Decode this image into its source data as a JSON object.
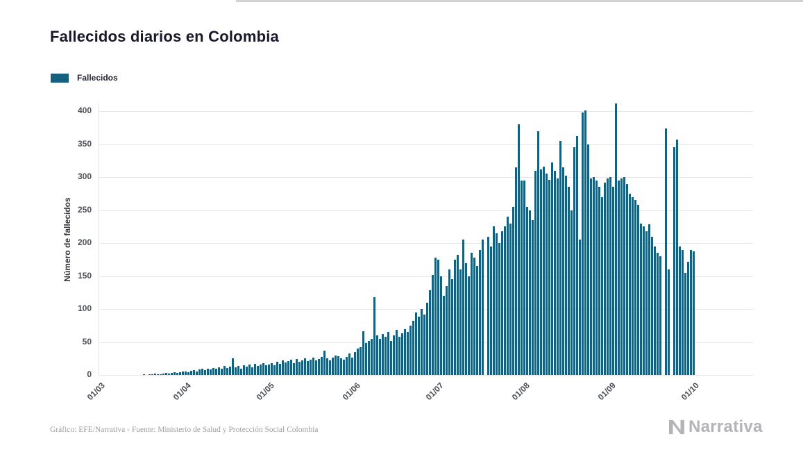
{
  "page": {
    "title": "Fallecidos diarios en Colombia",
    "footer": "Gráfico: EFE/Narrativa - Fuente: Ministerio de Salud y Protección Social Colombia",
    "logo_text": "Narrativa"
  },
  "legend": {
    "label": "Fallecidos",
    "color": "#15607e"
  },
  "chart_data": {
    "type": "bar",
    "title": "Fallecidos diarios en Colombia",
    "series_name": "Fallecidos",
    "xlabel": "",
    "ylabel": "Número de fallecidos",
    "bar_color": "#15607e",
    "grid": true,
    "legend_position": "top-left",
    "ylim": [
      0,
      420
    ],
    "yticks": [
      0,
      50,
      100,
      150,
      200,
      250,
      300,
      350,
      400
    ],
    "date_format": "DD/MM",
    "x_start": "01/03",
    "x_end": "01/10",
    "x_frequency": "daily",
    "xticks": [
      {
        "label": "01/03",
        "day": 0
      },
      {
        "label": "01/04",
        "day": 31
      },
      {
        "label": "01/05",
        "day": 61
      },
      {
        "label": "01/06",
        "day": 92
      },
      {
        "label": "01/07",
        "day": 122
      },
      {
        "label": "01/08",
        "day": 153
      },
      {
        "label": "01/09",
        "day": 184
      },
      {
        "label": "01/10",
        "day": 214
      }
    ],
    "values": [
      0,
      0,
      0,
      0,
      0,
      0,
      0,
      0,
      0,
      0,
      0,
      0,
      0,
      0,
      0,
      0,
      1,
      0,
      1,
      1,
      2,
      1,
      1,
      2,
      3,
      2,
      3,
      4,
      3,
      4,
      5,
      5,
      4,
      6,
      7,
      5,
      8,
      9,
      7,
      10,
      8,
      11,
      9,
      12,
      10,
      14,
      11,
      13,
      25,
      12,
      14,
      10,
      15,
      13,
      16,
      12,
      17,
      14,
      16,
      18,
      15,
      16,
      18,
      15,
      20,
      17,
      22,
      19,
      21,
      23,
      18,
      24,
      20,
      22,
      25,
      21,
      23,
      26,
      22,
      24,
      27,
      37,
      25,
      22,
      26,
      30,
      28,
      25,
      23,
      27,
      33,
      26,
      35,
      40,
      42,
      66,
      48,
      52,
      55,
      118,
      60,
      55,
      62,
      58,
      65,
      52,
      60,
      68,
      58,
      63,
      70,
      65,
      75,
      82,
      95,
      88,
      100,
      92,
      110,
      128,
      152,
      178,
      175,
      150,
      120,
      135,
      160,
      145,
      175,
      182,
      160,
      205,
      170,
      150,
      185,
      178,
      165,
      190,
      205,
      0,
      210,
      195,
      225,
      215,
      200,
      218,
      225,
      240,
      230,
      255,
      315,
      380,
      295,
      295,
      255,
      250,
      235,
      310,
      370,
      312,
      316,
      305,
      296,
      322,
      310,
      298,
      355,
      315,
      302,
      285,
      250,
      345,
      362,
      205,
      398,
      401,
      350,
      298,
      300,
      295,
      285,
      270,
      292,
      298,
      300,
      285,
      412,
      295,
      298,
      300,
      290,
      275,
      270,
      265,
      258,
      230,
      225,
      218,
      228,
      210,
      195,
      185,
      180,
      0,
      374,
      160,
      0,
      345,
      357,
      195,
      190,
      155,
      172,
      190,
      187
    ]
  }
}
